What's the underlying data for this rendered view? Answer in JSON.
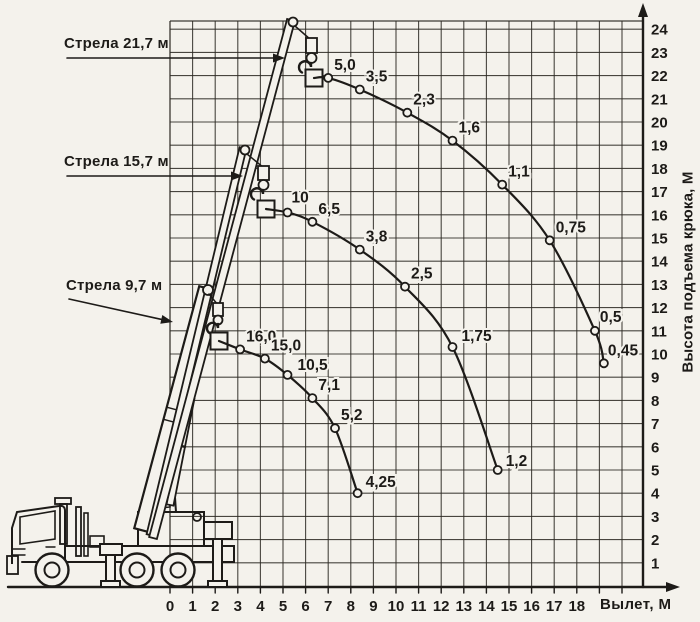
{
  "page": {
    "paper": "#f4f2ec",
    "ink": "#1d1b18",
    "grid_line": "#2b2822"
  },
  "labels": {
    "booms": [
      {
        "text": "Стрела 21,7 м"
      },
      {
        "text": "Стрела 15,7 м"
      },
      {
        "text": "Стрела 9,7 м"
      }
    ]
  },
  "axes": {
    "x": {
      "title": "Вылет, М",
      "ticks": [
        0,
        1,
        2,
        3,
        4,
        5,
        6,
        7,
        8,
        9,
        10,
        11,
        12,
        13,
        14,
        15,
        16,
        17,
        18
      ]
    },
    "y": {
      "title": "Высота подъема крюка, М",
      "ticks": [
        1,
        2,
        3,
        4,
        5,
        6,
        7,
        8,
        9,
        10,
        11,
        12,
        13,
        14,
        15,
        16,
        17,
        18,
        19,
        20,
        21,
        22,
        23,
        24
      ]
    }
  },
  "chart_data": {
    "type": "line",
    "title": "",
    "xlabel": "Вылет, М",
    "ylabel": "Высота подъема крюка, М",
    "xlim": [
      0,
      21
    ],
    "ylim": [
      0,
      24.4
    ],
    "grid": true,
    "series": [
      {
        "name": "Стрела 21,7 м",
        "boom_length_m": 21.7,
        "points": [
          {
            "x": 7.0,
            "y": 21.9,
            "load_t": "5,0"
          },
          {
            "x": 8.4,
            "y": 21.4,
            "load_t": "3,5"
          },
          {
            "x": 10.5,
            "y": 20.4,
            "load_t": "2,3"
          },
          {
            "x": 12.5,
            "y": 19.2,
            "load_t": "1,6"
          },
          {
            "x": 14.7,
            "y": 17.3,
            "load_t": "1,1"
          },
          {
            "x": 16.8,
            "y": 14.9,
            "load_t": "0,75"
          },
          {
            "x": 18.8,
            "y": 11.0,
            "load_t": "0,5"
          },
          {
            "x": 19.2,
            "y": 9.6,
            "load_t": "0,45"
          }
        ]
      },
      {
        "name": "Стрела 15,7 м",
        "boom_length_m": 15.7,
        "points": [
          {
            "x": 5.2,
            "y": 16.1,
            "load_t": "10"
          },
          {
            "x": 6.3,
            "y": 15.7,
            "load_t": "6,5"
          },
          {
            "x": 8.4,
            "y": 14.5,
            "load_t": "3,8"
          },
          {
            "x": 10.4,
            "y": 12.9,
            "load_t": "2,5"
          },
          {
            "x": 12.5,
            "y": 10.3,
            "load_t": "1,75"
          },
          {
            "x": 14.5,
            "y": 5.0,
            "load_t": "1,2"
          }
        ]
      },
      {
        "name": "Стрела 9,7 м",
        "boom_length_m": 9.7,
        "points": [
          {
            "x": 3.1,
            "y": 10.2,
            "load_t": "16,0"
          },
          {
            "x": 4.2,
            "y": 9.8,
            "load_t": "15,0"
          },
          {
            "x": 5.2,
            "y": 9.1,
            "load_t": "10,5"
          },
          {
            "x": 6.3,
            "y": 8.1,
            "load_t": "7,1"
          },
          {
            "x": 7.3,
            "y": 6.8,
            "load_t": "5,2"
          },
          {
            "x": 8.3,
            "y": 4.0,
            "load_t": "4,25"
          }
        ]
      }
    ]
  }
}
